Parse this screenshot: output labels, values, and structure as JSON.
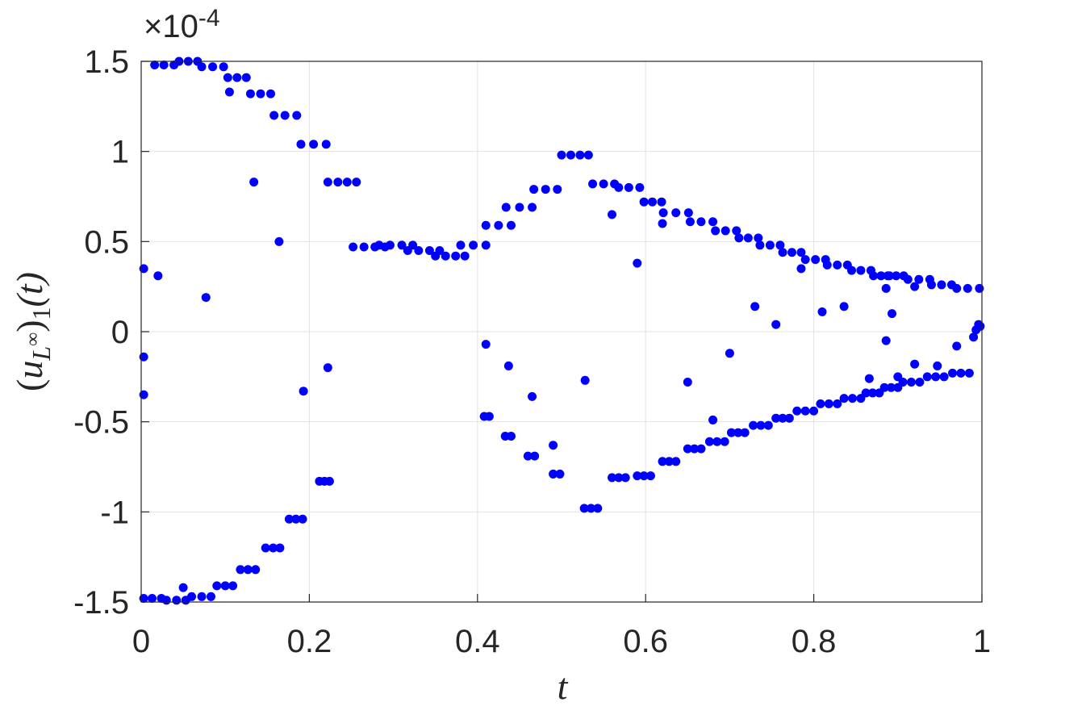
{
  "chart_data": {
    "type": "scatter",
    "xlabel": "t",
    "ylabel": [
      "(",
      "u",
      "L",
      "∞",
      ")",
      "1",
      "(t)"
    ],
    "y_exponent": [
      "×10",
      "-4"
    ],
    "color": "#0000ff",
    "grid": true,
    "xlim": [
      0,
      1
    ],
    "ylim": [
      -1.5,
      1.5
    ],
    "xticks": [
      0,
      0.2,
      0.4,
      0.6,
      0.8,
      1
    ],
    "yticks": [
      -1.5,
      -1,
      -0.5,
      0,
      0.5,
      1,
      1.5
    ],
    "x": [
      0.016,
      0.027,
      0.039,
      0.045,
      0.056,
      0.067,
      0.072,
      0.085,
      0.098,
      0.103,
      0.114,
      0.125,
      0.13,
      0.142,
      0.154,
      0.158,
      0.171,
      0.185,
      0.19,
      0.205,
      0.22,
      0.222,
      0.234,
      0.245,
      0.256,
      0.252,
      0.265,
      0.278,
      0.29,
      0.283,
      0.296,
      0.31,
      0.323,
      0.317,
      0.33,
      0.343,
      0.355,
      0.35,
      0.362,
      0.374,
      0.385,
      0.38,
      0.395,
      0.41,
      0.41,
      0.425,
      0.44,
      0.434,
      0.45,
      0.465,
      0.467,
      0.481,
      0.495,
      0.5,
      0.511,
      0.522,
      0.532,
      0.537,
      0.55,
      0.563,
      0.568,
      0.58,
      0.593,
      0.598,
      0.608,
      0.619,
      0.621,
      0.636,
      0.651,
      0.653,
      0.666,
      0.68,
      0.683,
      0.695,
      0.708,
      0.711,
      0.722,
      0.734,
      0.736,
      0.748,
      0.76,
      0.763,
      0.774,
      0.785,
      0.79,
      0.802,
      0.814,
      0.816,
      0.828,
      0.84,
      0.845,
      0.856,
      0.868,
      0.871,
      0.88,
      0.888,
      0.89,
      0.898,
      0.907,
      0.912,
      0.925,
      0.938,
      0.94,
      0.952,
      0.964,
      0.97,
      0.983,
      0.997,
      0.003,
      0.013,
      0.024,
      0.03,
      0.042,
      0.053,
      0.06,
      0.072,
      0.083,
      0.09,
      0.1,
      0.109,
      0.118,
      0.127,
      0.136,
      0.148,
      0.157,
      0.165,
      0.176,
      0.184,
      0.192,
      0.212,
      0.218,
      0.224,
      0.408,
      0.414,
      0.433,
      0.44,
      0.46,
      0.468,
      0.49,
      0.498,
      0.527,
      0.535,
      0.543,
      0.56,
      0.568,
      0.576,
      0.59,
      0.598,
      0.606,
      0.62,
      0.628,
      0.636,
      0.65,
      0.658,
      0.666,
      0.676,
      0.685,
      0.694,
      0.702,
      0.71,
      0.718,
      0.728,
      0.737,
      0.746,
      0.755,
      0.763,
      0.771,
      0.78,
      0.79,
      0.8,
      0.808,
      0.818,
      0.828,
      0.836,
      0.846,
      0.856,
      0.862,
      0.87,
      0.878,
      0.884,
      0.892,
      0.9,
      0.906,
      0.916,
      0.926,
      0.935,
      0.945,
      0.955,
      0.965,
      0.975,
      0.985,
      0.003,
      0.003,
      0.003,
      0.02,
      0.05,
      0.077,
      0.105,
      0.134,
      0.164,
      0.193,
      0.222,
      0.41,
      0.437,
      0.465,
      0.49,
      0.528,
      0.56,
      0.59,
      0.62,
      0.65,
      0.68,
      0.7,
      0.73,
      0.755,
      0.785,
      0.81,
      0.836,
      0.866,
      0.886,
      0.886,
      0.893,
      0.9,
      0.92,
      0.92,
      0.947,
      0.97,
      0.99,
      0.993,
      0.996,
      0.998
    ],
    "values": [
      1.48,
      1.48,
      1.48,
      1.5,
      1.5,
      1.5,
      1.47,
      1.47,
      1.47,
      1.41,
      1.41,
      1.41,
      1.32,
      1.32,
      1.32,
      1.2,
      1.2,
      1.2,
      1.04,
      1.04,
      1.04,
      0.83,
      0.83,
      0.83,
      0.83,
      0.47,
      0.47,
      0.47,
      0.47,
      0.48,
      0.48,
      0.48,
      0.48,
      0.45,
      0.45,
      0.45,
      0.45,
      0.42,
      0.42,
      0.42,
      0.42,
      0.48,
      0.48,
      0.48,
      0.59,
      0.59,
      0.59,
      0.69,
      0.69,
      0.69,
      0.79,
      0.79,
      0.79,
      0.98,
      0.98,
      0.98,
      0.98,
      0.82,
      0.82,
      0.82,
      0.8,
      0.8,
      0.8,
      0.72,
      0.72,
      0.72,
      0.66,
      0.66,
      0.66,
      0.61,
      0.61,
      0.61,
      0.56,
      0.56,
      0.56,
      0.52,
      0.52,
      0.52,
      0.48,
      0.48,
      0.48,
      0.44,
      0.44,
      0.44,
      0.4,
      0.4,
      0.4,
      0.37,
      0.37,
      0.37,
      0.34,
      0.34,
      0.34,
      0.31,
      0.31,
      0.31,
      0.31,
      0.31,
      0.31,
      0.29,
      0.29,
      0.29,
      0.26,
      0.26,
      0.26,
      0.24,
      0.24,
      0.24,
      -1.48,
      -1.48,
      -1.48,
      -1.49,
      -1.49,
      -1.49,
      -1.47,
      -1.47,
      -1.47,
      -1.41,
      -1.41,
      -1.41,
      -1.32,
      -1.32,
      -1.32,
      -1.2,
      -1.2,
      -1.2,
      -1.04,
      -1.04,
      -1.04,
      -0.83,
      -0.83,
      -0.83,
      -0.47,
      -0.47,
      -0.58,
      -0.58,
      -0.69,
      -0.69,
      -0.79,
      -0.79,
      -0.98,
      -0.98,
      -0.98,
      -0.81,
      -0.81,
      -0.81,
      -0.8,
      -0.8,
      -0.8,
      -0.72,
      -0.72,
      -0.72,
      -0.65,
      -0.65,
      -0.65,
      -0.61,
      -0.61,
      -0.61,
      -0.56,
      -0.56,
      -0.56,
      -0.52,
      -0.52,
      -0.52,
      -0.48,
      -0.48,
      -0.48,
      -0.44,
      -0.44,
      -0.44,
      -0.4,
      -0.4,
      -0.4,
      -0.37,
      -0.37,
      -0.37,
      -0.34,
      -0.34,
      -0.34,
      -0.31,
      -0.31,
      -0.31,
      -0.28,
      -0.28,
      -0.28,
      -0.25,
      -0.25,
      -0.25,
      -0.23,
      -0.23,
      -0.23,
      0.35,
      -0.14,
      -0.35,
      0.31,
      -1.42,
      0.19,
      1.33,
      0.83,
      0.5,
      -0.33,
      -0.2,
      -0.07,
      -0.19,
      -0.36,
      -0.63,
      -0.27,
      0.65,
      0.38,
      0.6,
      -0.28,
      -0.49,
      -0.12,
      0.14,
      0.04,
      0.35,
      0.11,
      0.14,
      -0.26,
      -0.05,
      0.24,
      0.1,
      -0.25,
      -0.18,
      0.25,
      -0.19,
      -0.08,
      -0.03,
      0.01,
      0.04,
      0.03
    ]
  }
}
